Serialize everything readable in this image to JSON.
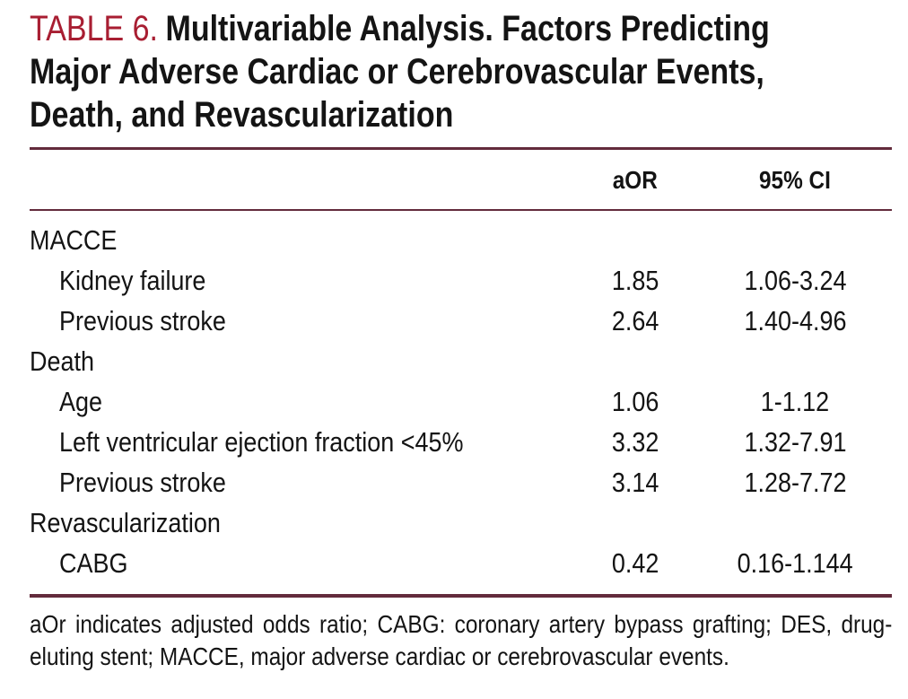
{
  "page": {
    "background_color": "#ffffff",
    "text_color": "#141414",
    "rule_color": "#632b3c",
    "accent_color": "#a81e32"
  },
  "title": {
    "prefix": "TABLE 6.",
    "lines": [
      "Multivariable Analysis. Factors Predicting",
      "Major Adverse Cardiac or Cerebrovascular Events,",
      "Death, and Revascularization"
    ],
    "full_text": "TABLE 6. Multivariable Analysis. Factors Predicting Major Adverse Cardiac or Cerebrovascular Events, Death, and Revascularization"
  },
  "table": {
    "columns": {
      "factor": "",
      "aor": "aOR",
      "ci": "95% CI"
    },
    "rows": [
      {
        "label": "MACCE",
        "aor": "",
        "ci": ""
      },
      {
        "label": "Kidney failure",
        "aor": "1.85",
        "ci": "1.06-3.24"
      },
      {
        "label": "Previous stroke",
        "aor": "2.64",
        "ci": "1.40-4.96"
      },
      {
        "label": "Death",
        "aor": "",
        "ci": ""
      },
      {
        "label": "Age",
        "aor": "1.06",
        "ci": "1-1.12"
      },
      {
        "label": "Left ventricular ejection fraction <45%",
        "aor": "3.32",
        "ci": "1.32-7.91"
      },
      {
        "label": "Previous stroke",
        "aor": "3.14",
        "ci": "1.28-7.72"
      },
      {
        "label": "Revascularization",
        "aor": "",
        "ci": ""
      },
      {
        "label": "CABG",
        "aor": "0.42",
        "ci": "0.16-1.144"
      }
    ]
  },
  "footnote": "aOr indicates adjusted odds ratio; CABG: coronary artery bypass grafting; DES, drug-eluting stent; MACCE, major adverse cardiac or cerebrovascular events."
}
